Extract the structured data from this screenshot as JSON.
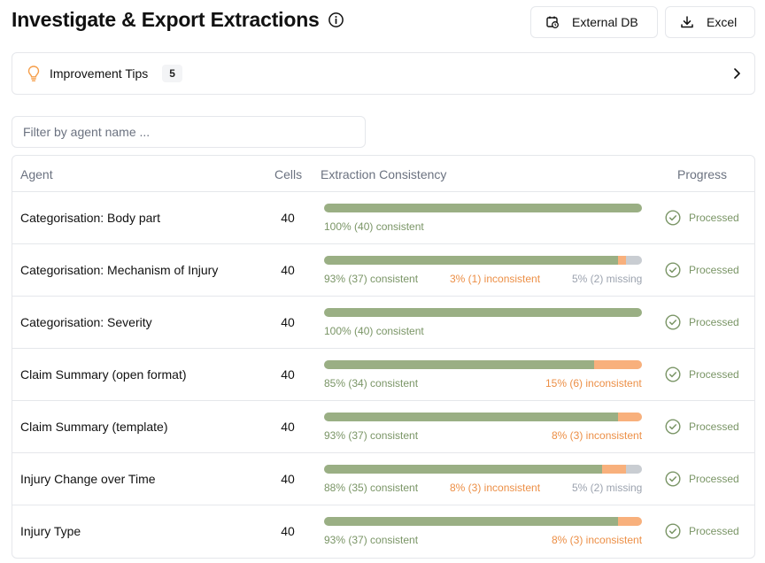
{
  "header": {
    "title": "Investigate & Export Extractions",
    "buttons": {
      "external_db": "External DB",
      "excel": "Excel"
    }
  },
  "tips": {
    "label": "Improvement Tips",
    "count": "5"
  },
  "filter": {
    "placeholder": "Filter by agent name ...",
    "value": ""
  },
  "table": {
    "columns": {
      "agent": "Agent",
      "cells": "Cells",
      "consistency": "Extraction Consistency",
      "progress": "Progress"
    },
    "rows": [
      {
        "agent": "Categorisation: Body part",
        "cells": "40",
        "consistent": 100,
        "inconsistent": 0,
        "missing": 0,
        "consistent_label": "100% (40) consistent",
        "inconsistent_label": "",
        "missing_label": "",
        "status": "Processed"
      },
      {
        "agent": "Categorisation: Mechanism of Injury",
        "cells": "40",
        "consistent": 92.5,
        "inconsistent": 2.5,
        "missing": 5,
        "consistent_label": "93% (37) consistent",
        "inconsistent_label": "3% (1) inconsistent",
        "missing_label": "5% (2) missing",
        "status": "Processed"
      },
      {
        "agent": "Categorisation: Severity",
        "cells": "40",
        "consistent": 100,
        "inconsistent": 0,
        "missing": 0,
        "consistent_label": "100% (40) consistent",
        "inconsistent_label": "",
        "missing_label": "",
        "status": "Processed"
      },
      {
        "agent": "Claim Summary (open format)",
        "cells": "40",
        "consistent": 85,
        "inconsistent": 15,
        "missing": 0,
        "consistent_label": "85% (34) consistent",
        "inconsistent_label": "15% (6) inconsistent",
        "missing_label": "",
        "status": "Processed"
      },
      {
        "agent": "Claim Summary (template)",
        "cells": "40",
        "consistent": 92.5,
        "inconsistent": 7.5,
        "missing": 0,
        "consistent_label": "93% (37) consistent",
        "inconsistent_label": "8% (3) inconsistent",
        "missing_label": "",
        "status": "Processed"
      },
      {
        "agent": "Injury Change over Time",
        "cells": "40",
        "consistent": 87.5,
        "inconsistent": 7.5,
        "missing": 5,
        "consistent_label": "88% (35) consistent",
        "inconsistent_label": "8% (3) inconsistent",
        "missing_label": "5% (2) missing",
        "status": "Processed"
      },
      {
        "agent": "Injury Type",
        "cells": "40",
        "consistent": 92.5,
        "inconsistent": 7.5,
        "missing": 0,
        "consistent_label": "93% (37) consistent",
        "inconsistent_label": "8% (3) inconsistent",
        "missing_label": "",
        "status": "Processed"
      }
    ]
  },
  "colors": {
    "consistent": "#9aaf84",
    "inconsistent": "#f8b07c",
    "missing": "#c9cdd2",
    "status": "#7a9566"
  }
}
